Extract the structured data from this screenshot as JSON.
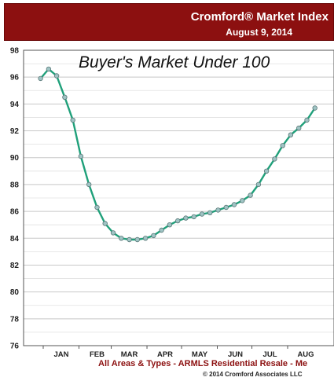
{
  "header": {
    "title": "Cromford® Market Index",
    "date": "August 9, 2014"
  },
  "footer": {
    "subtitle": "All Areas & Types - ARMLS Residential Resale - Me",
    "copyright": "© 2014 Cromford Associates LLC"
  },
  "colors": {
    "header_bg": "#8c1010",
    "line": "#1fa07a",
    "marker_fill": "#9fc4c4",
    "marker_stroke": "#5a7878"
  },
  "chart_data": {
    "type": "line",
    "title": "Buyer's Market Under 100",
    "ylim": [
      76,
      98
    ],
    "yticks": [
      76,
      78,
      80,
      82,
      84,
      86,
      88,
      90,
      92,
      94,
      96,
      98
    ],
    "x_month_labels": [
      "JAN",
      "FEB",
      "MAR",
      "APR",
      "MAY",
      "JUN",
      "JUL",
      "AUG"
    ],
    "grid": true,
    "series": [
      {
        "x": [
          "2013-12-14",
          "2013-12-21",
          "2013-12-28",
          "2014-01-04",
          "2014-01-11",
          "2014-01-18",
          "2014-01-25",
          "2014-02-01",
          "2014-02-08",
          "2014-02-15",
          "2014-02-22",
          "2014-03-01",
          "2014-03-08",
          "2014-03-15",
          "2014-03-22",
          "2014-03-29",
          "2014-04-05",
          "2014-04-12",
          "2014-04-19",
          "2014-04-26",
          "2014-05-03",
          "2014-05-10",
          "2014-05-17",
          "2014-05-24",
          "2014-05-31",
          "2014-06-07",
          "2014-06-14",
          "2014-06-21",
          "2014-06-28",
          "2014-07-05",
          "2014-07-12",
          "2014-07-19",
          "2014-07-26",
          "2014-08-02",
          "2014-08-09"
        ],
        "values": [
          95.9,
          96.6,
          96.1,
          94.5,
          92.8,
          90.1,
          88.0,
          86.3,
          85.1,
          84.4,
          84.0,
          83.9,
          83.9,
          84.0,
          84.2,
          84.6,
          85.0,
          85.3,
          85.5,
          85.6,
          85.8,
          85.9,
          86.1,
          86.3,
          86.5,
          86.8,
          87.2,
          88.0,
          89.0,
          89.9,
          90.9,
          91.7,
          92.2,
          92.8,
          93.7
        ]
      }
    ]
  }
}
